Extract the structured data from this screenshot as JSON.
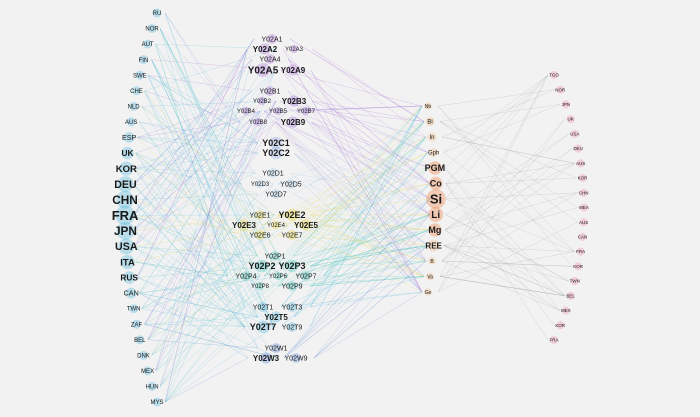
{
  "countries_left": [
    "RU",
    "NOR",
    "AUT",
    "FIN",
    "SWE",
    "CHE",
    "NLD",
    "AUS",
    "ESP",
    "UK",
    "KOR",
    "DEU",
    "CHN",
    "FRA",
    "JPN",
    "USA",
    "ITA",
    "RUS",
    "CAN",
    "TWN",
    "ZAF",
    "BEL",
    "DNK",
    "MEX",
    "HUN",
    "MYS"
  ],
  "countries_right": [
    "TGO",
    "NOR",
    "JPN",
    "UK",
    "USA",
    "DEU",
    "AUS",
    "KOR",
    "CHN",
    "MEA",
    "AUS",
    "CAN",
    "FRA",
    "KOR",
    "TWN",
    "BEL",
    "MEX",
    "KOR",
    "FRA"
  ],
  "technology_groups": [
    {
      "group": "Y02A",
      "codes": [
        "Y02A1",
        "Y02A2",
        "Y02A3",
        "Y02A4",
        "Y02A5",
        "Y02A9"
      ]
    },
    {
      "group": "Y02B",
      "codes": [
        "Y02B1",
        "Y02B2",
        "Y02B3",
        "Y02B4",
        "Y02B5",
        "Y02B7",
        "Y02B8",
        "Y02B9"
      ]
    },
    {
      "group": "Y02C",
      "codes": [
        "Y02C1",
        "Y02C2"
      ]
    },
    {
      "group": "Y02D",
      "codes": [
        "Y02D1",
        "Y02D3",
        "Y02D5",
        "Y02D7"
      ]
    },
    {
      "group": "Y02E",
      "codes": [
        "Y02E1",
        "Y02E2",
        "Y02E3",
        "Y02E4",
        "Y02E5",
        "Y02E6",
        "Y02E7"
      ]
    },
    {
      "group": "Y02P",
      "codes": [
        "Y02P1",
        "Y02P2",
        "Y02P3",
        "Y02P4",
        "Y02P6",
        "Y02P7",
        "Y02P8",
        "Y02P9"
      ]
    },
    {
      "group": "Y02T",
      "codes": [
        "Y02T1",
        "Y02T3",
        "Y02T5",
        "Y02T7",
        "Y02T9"
      ]
    },
    {
      "group": "Y02W",
      "codes": [
        "Y02W1",
        "Y02W3",
        "Y02W9"
      ]
    }
  ],
  "materials": [
    "Nb",
    "Bi",
    "In",
    "Gph",
    "PGM",
    "Co",
    "Si",
    "Li",
    "Mg",
    "REE",
    "B",
    "Va",
    "Ge"
  ],
  "colors": {
    "background": "#f2f2f2",
    "Y02A": "#b070d8",
    "Y02B": "#9b6fd6",
    "Y02C": "#8fa9e6",
    "Y02D": "#9ec8e8",
    "Y02E": "#e6d23c",
    "Y02P": "#3fc2b4",
    "Y02T": "#4fb6dc",
    "Y02W": "#5a86d8",
    "left_default": "#4fb6dc",
    "material": "#f2b87a",
    "material_highlight": "#f07a3c",
    "right": "#f08aa8",
    "link_left": "#59b9d6",
    "link_mid": "#e58aa3",
    "link_right": "#9aa0a8"
  }
}
